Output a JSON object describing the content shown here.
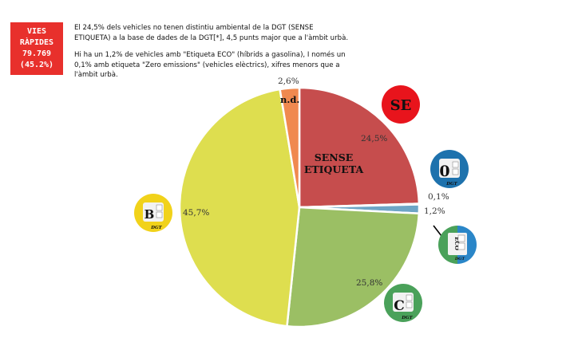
{
  "badge": {
    "line1": "VIES RÀPIDES",
    "line2": "79.769",
    "line3": "(45.2%)"
  },
  "info": {
    "p1": "El 24,5% dels vehicles no tenen distintiu ambiental de la DGT (SENSE ETIQUETA) a la base de dades de la DGT[*], 4,5 punts major que a l'àmbit urbà.",
    "p2": "Hi ha un 1,2% de vehicles amb \"Etiqueta ECO\" (híbrids a gasolina), I només un 0,1% amb etiqueta \"Zero emissions\" (vehicles elèctrics), xifres menors que a l'àmbit urbà."
  },
  "chart_data": {
    "type": "pie",
    "slices": [
      {
        "label": "SENSE ETIQUETA",
        "value": 24.5,
        "value_label": "24,5%",
        "color": "#c64d4d"
      },
      {
        "label": "0",
        "value": 0.1,
        "value_label": "0,1%",
        "color": "#2a7fb8"
      },
      {
        "label": "ECO",
        "value": 1.2,
        "value_label": "1,2%",
        "color": "#6da5c6"
      },
      {
        "label": "C",
        "value": 25.8,
        "value_label": "25,8%",
        "color": "#9bbf64"
      },
      {
        "label": "B",
        "value": 45.7,
        "value_label": "45,7%",
        "color": "#dede4f"
      },
      {
        "label": "n.d.",
        "value": 2.6,
        "value_label": "2,6%",
        "color": "#f0894f"
      }
    ]
  },
  "labels": {
    "se_circle": "SE",
    "sense_line1": "SENSE",
    "sense_line2": "ETIQUETA",
    "nd": "n.d.",
    "zero_badge": "0",
    "eco_badge": "ECO",
    "c_badge": "C",
    "b_badge": "B",
    "dgt_mark": "DGT"
  },
  "colors": {
    "badge_red": "#e8302c",
    "se_red": "#e8141c",
    "zero_badge_blue": "#1e72ad",
    "eco_badge_green": "#4aa15a",
    "eco_badge_blue": "#2a86c8",
    "c_badge_green": "#4aa15a",
    "b_badge_yellow": "#f1d21a"
  }
}
